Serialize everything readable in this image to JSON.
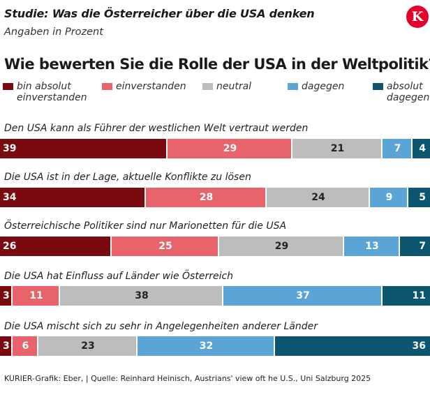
{
  "header": {
    "study_title": "Studie: Was die Österreicher über die USA denken",
    "subtitle": "Angaben in Prozent",
    "logo_letter": "K"
  },
  "footer": {
    "source": "KURIER-Grafik: Eber, | Quelle: Reinhard Heinisch, Austrians' view oft he U.S., Uni Salzburg 2025"
  },
  "colors": {
    "logo": "#e4002b",
    "value_light": "#ffffff",
    "value_dark": "#222222"
  },
  "chart_data": {
    "type": "bar",
    "orientation": "horizontal",
    "stacked": true,
    "title": "Wie bewerten Sie die Rolle der USA in der Weltpolitik?",
    "unit": "Prozent",
    "legend_position": "top",
    "categories": [
      "Den USA kann als Führer der westlichen Welt vertraut werden",
      "Die USA ist in der Lage, aktuelle Konflikte zu lösen",
      "Österreichische Politiker sind nur Marionetten für die USA",
      "Die USA hat Einfluss auf Länder wie Österreich",
      "Die USA mischt sich zu sehr in Angelegenheiten anderer Länder"
    ],
    "series": [
      {
        "name": "bin absolut\neinverstanden",
        "color": "#7a0a10",
        "values": [
          39,
          34,
          26,
          3,
          3
        ]
      },
      {
        "name": "einverstanden",
        "color": "#e8636a",
        "values": [
          29,
          28,
          25,
          11,
          6
        ]
      },
      {
        "name": "neutral",
        "color": "#bdbdbd",
        "values": [
          21,
          24,
          29,
          38,
          23
        ]
      },
      {
        "name": "dagegen",
        "color": "#5aa4d6",
        "values": [
          7,
          9,
          13,
          37,
          32
        ]
      },
      {
        "name": "absolut\ndagegen",
        "color": "#0c5670",
        "values": [
          4,
          5,
          7,
          11,
          36
        ]
      }
    ]
  }
}
